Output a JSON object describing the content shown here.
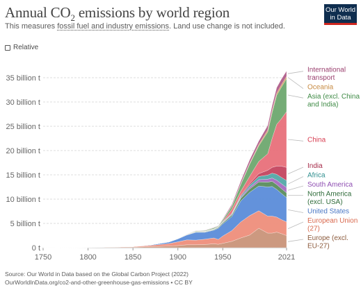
{
  "header": {
    "title_main": "Annual CO",
    "title_sub": "2",
    "title_rest": " emissions by world region",
    "subtitle_pre": "This measures ",
    "subtitle_link": "fossil fuel and industry emissions",
    "subtitle_post": ". Land use change is not included.",
    "logo_line1": "Our World",
    "logo_line2": "in Data"
  },
  "controls": {
    "relative_label": "Relative",
    "relative_checked": false
  },
  "footer": {
    "source": "Source: Our World in Data based on the Global Carbon Project (2022)",
    "link": "OurWorldInData.org/co2-and-other-greenhouse-gas-emissions • CC BY"
  },
  "chart_data": {
    "type": "area",
    "stacked": true,
    "x": [
      1750,
      1800,
      1850,
      1870,
      1890,
      1900,
      1910,
      1920,
      1930,
      1940,
      1945,
      1950,
      1960,
      1970,
      1980,
      1990,
      2000,
      2005,
      2010,
      2015,
      2021
    ],
    "xlim": [
      1750,
      2021
    ],
    "ylim": [
      0,
      37000000000
    ],
    "x_ticks": [
      1750,
      1800,
      1850,
      1900,
      1950,
      2021
    ],
    "y_ticks": [
      0,
      5000000000,
      10000000000,
      15000000000,
      20000000000,
      25000000000,
      30000000000,
      35000000000
    ],
    "y_tick_labels": [
      "0 t",
      "5 billion t",
      "10 billion t",
      "15 billion t",
      "20 billion t",
      "25 billion t",
      "30 billion t",
      "35 billion t"
    ],
    "grid": true,
    "legend_placement": "right, inline labels",
    "series": [
      {
        "name": "Europe (excl. EU-27)",
        "label_lines": [
          "Europe (excl.",
          "EU-27)"
        ],
        "color": "#c99379",
        "text_color": "#8b5a3c",
        "values": [
          0.0,
          0.02,
          0.12,
          0.22,
          0.35,
          0.45,
          0.6,
          0.6,
          0.65,
          0.8,
          0.7,
          0.9,
          1.3,
          2.0,
          2.6,
          4.0,
          3.0,
          3.0,
          3.2,
          2.9,
          2.5
        ]
      },
      {
        "name": "European Union (27)",
        "label_lines": [
          "European Union",
          "(27)"
        ],
        "color": "#ee8e7b",
        "text_color": "#d9694e",
        "values": [
          0.0,
          0.01,
          0.1,
          0.25,
          0.5,
          0.75,
          1.0,
          0.95,
          1.1,
          1.2,
          1.0,
          1.5,
          2.2,
          3.3,
          4.0,
          3.6,
          3.5,
          3.5,
          3.1,
          2.9,
          2.8
        ]
      },
      {
        "name": "United States",
        "label_lines": [
          "United States"
        ],
        "color": "#5b8cd9",
        "text_color": "#4876c4",
        "values": [
          0.0,
          0.0,
          0.01,
          0.1,
          0.3,
          0.6,
          1.0,
          1.6,
          1.4,
          1.6,
          2.3,
          2.5,
          2.9,
          4.3,
          4.8,
          5.1,
          6.0,
          6.1,
          5.7,
          5.4,
          5.0
        ]
      },
      {
        "name": "North America (excl. USA)",
        "label_lines": [
          "North America",
          "(excl. USA)"
        ],
        "color": "#5a8d5e",
        "text_color": "#2e6b39",
        "values": [
          0.0,
          0.0,
          0.0,
          0.01,
          0.02,
          0.04,
          0.06,
          0.1,
          0.1,
          0.12,
          0.15,
          0.2,
          0.3,
          0.55,
          0.7,
          0.85,
          1.0,
          1.05,
          1.0,
          1.0,
          0.98
        ]
      },
      {
        "name": "South America",
        "label_lines": [
          "South America"
        ],
        "color": "#a56cc1",
        "text_color": "#8e4eb2",
        "values": [
          0.0,
          0.0,
          0.0,
          0.0,
          0.0,
          0.01,
          0.01,
          0.02,
          0.03,
          0.04,
          0.05,
          0.06,
          0.12,
          0.2,
          0.35,
          0.45,
          0.6,
          0.7,
          0.9,
          1.0,
          1.1
        ]
      },
      {
        "name": "Africa",
        "label_lines": [
          "Africa"
        ],
        "color": "#53a8a8",
        "text_color": "#2e8e8e",
        "values": [
          0.0,
          0.0,
          0.0,
          0.0,
          0.0,
          0.01,
          0.02,
          0.03,
          0.04,
          0.05,
          0.05,
          0.1,
          0.15,
          0.25,
          0.45,
          0.65,
          0.85,
          1.0,
          1.2,
          1.3,
          1.45
        ]
      },
      {
        "name": "India",
        "label_lines": [
          "India"
        ],
        "color": "#c4455f",
        "text_color": "#a52a48",
        "values": [
          0.0,
          0.0,
          0.0,
          0.0,
          0.01,
          0.02,
          0.03,
          0.04,
          0.05,
          0.05,
          0.06,
          0.07,
          0.12,
          0.2,
          0.3,
          0.6,
          1.0,
          1.2,
          1.7,
          2.3,
          2.7
        ]
      },
      {
        "name": "China",
        "label_lines": [
          "China"
        ],
        "color": "#e8707a",
        "text_color": "#d73c50",
        "values": [
          0.0,
          0.0,
          0.0,
          0.0,
          0.0,
          0.0,
          0.01,
          0.02,
          0.02,
          0.03,
          0.03,
          0.08,
          0.8,
          0.8,
          1.5,
          2.5,
          3.4,
          6.0,
          8.6,
          9.7,
          11.5
        ]
      },
      {
        "name": "Asia (excl. China and India)",
        "label_lines": [
          "Asia (excl. China",
          "and India)"
        ],
        "color": "#6ea86f",
        "text_color": "#3e8a45",
        "values": [
          0.0,
          0.0,
          0.0,
          0.01,
          0.02,
          0.03,
          0.06,
          0.1,
          0.12,
          0.2,
          0.12,
          0.3,
          0.6,
          1.4,
          2.5,
          3.2,
          4.5,
          5.3,
          6.0,
          6.5,
          6.8
        ]
      },
      {
        "name": "Oceania",
        "label_lines": [
          "Oceania"
        ],
        "color": "#d49a5b",
        "text_color": "#c78b43",
        "values": [
          0.0,
          0.0,
          0.0,
          0.0,
          0.01,
          0.01,
          0.02,
          0.02,
          0.03,
          0.03,
          0.03,
          0.04,
          0.08,
          0.14,
          0.2,
          0.3,
          0.4,
          0.45,
          0.45,
          0.45,
          0.45
        ]
      },
      {
        "name": "International transport",
        "label_lines": [
          "International",
          "transport"
        ],
        "color": "#b05e8a",
        "text_color": "#9a3f6e",
        "values": [
          0.0,
          0.0,
          0.0,
          0.0,
          0.0,
          0.0,
          0.02,
          0.03,
          0.05,
          0.05,
          0.05,
          0.15,
          0.3,
          0.55,
          0.7,
          0.7,
          0.9,
          1.0,
          1.1,
          1.2,
          1.1
        ]
      }
    ],
    "value_unit_multiplier": 1000000000
  }
}
